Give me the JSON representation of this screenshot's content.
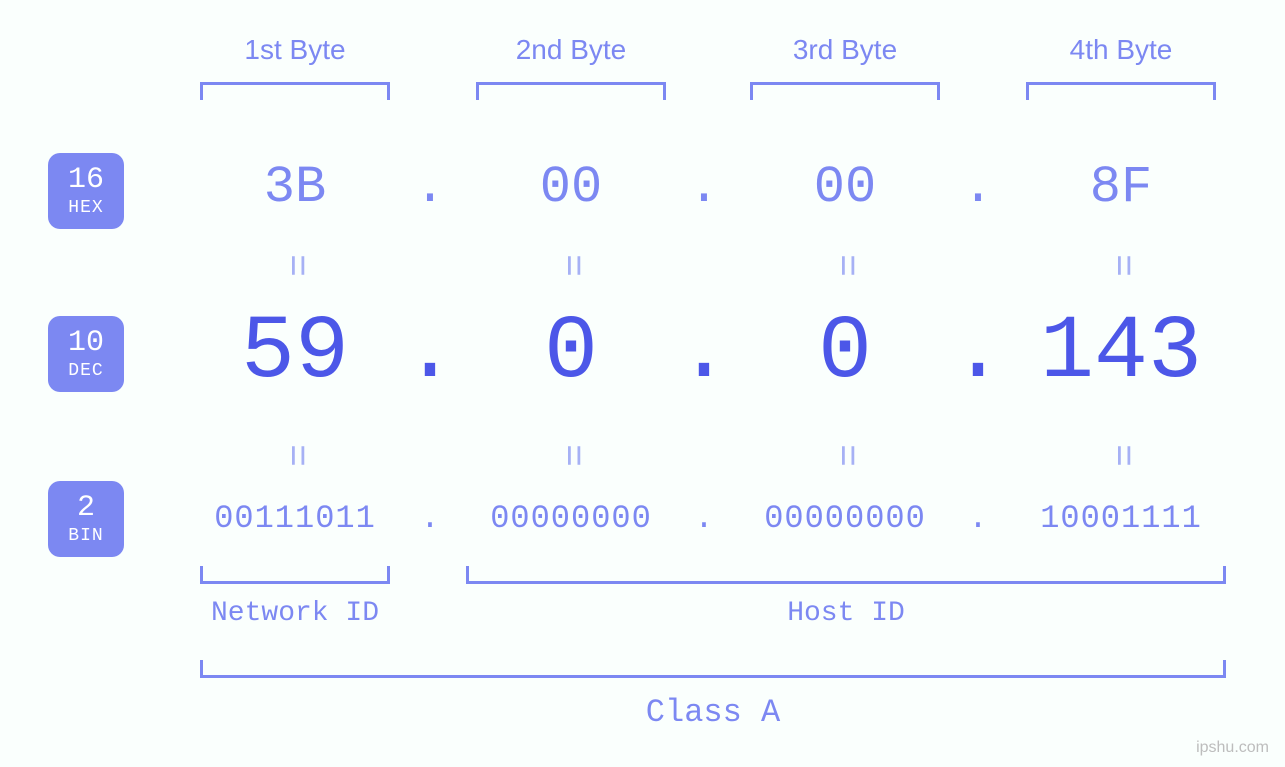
{
  "colors": {
    "background": "#fafffd",
    "primary": "#4c57e8",
    "primary_light": "#7c88f2",
    "badge_bg": "#7c88f2",
    "badge_text": "#ffffff",
    "muted": "#a6b1f5",
    "watermark": "#bdbdbd"
  },
  "typography": {
    "mono_family": "Consolas, Menlo, Courier New, monospace",
    "sans_family": "Segoe UI, Arial, sans-serif",
    "header_fontsize": 28,
    "hex_fontsize": 52,
    "dec_fontsize": 90,
    "bin_fontsize": 32,
    "badge_num_fontsize": 30,
    "badge_lbl_fontsize": 18,
    "bottom_label_fontsize": 28,
    "class_label_fontsize": 32,
    "equals_fontsize": 38
  },
  "diagram": {
    "type": "infographic",
    "ip_class": "Class A",
    "sections": {
      "network_id": "Network ID",
      "host_id": "Host ID"
    },
    "bases": [
      {
        "num": "16",
        "label": "HEX"
      },
      {
        "num": "10",
        "label": "DEC"
      },
      {
        "num": "2",
        "label": "BIN"
      }
    ],
    "byte_headers": [
      "1st Byte",
      "2nd Byte",
      "3rd Byte",
      "4th Byte"
    ],
    "separator": ".",
    "equals_glyph": "=",
    "bytes": [
      {
        "hex": "3B",
        "dec": "59",
        "bin": "00111011"
      },
      {
        "hex": "00",
        "dec": "0",
        "bin": "00000000"
      },
      {
        "hex": "00",
        "dec": "0",
        "bin": "00000000"
      },
      {
        "hex": "8F",
        "dec": "143",
        "bin": "10001111"
      }
    ]
  },
  "watermark": "ipshu.com"
}
